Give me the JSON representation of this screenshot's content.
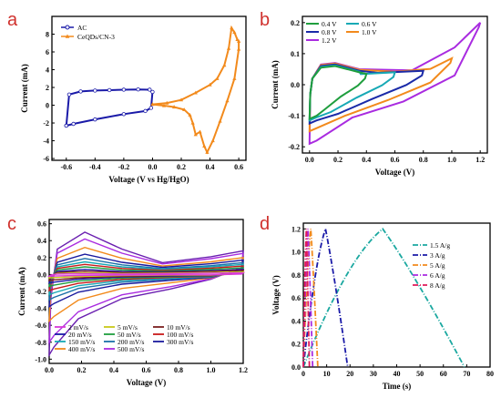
{
  "chart_data": [
    {
      "panel": "a",
      "type": "line",
      "xlabel": "Voltage (V vs Hg/HgO)",
      "ylabel": "Current (mA)",
      "xlim": [
        -0.7,
        0.65
      ],
      "ylim": [
        -6.2,
        10
      ],
      "xticks": [
        -0.6,
        -0.4,
        -0.2,
        0.0,
        0.2,
        0.4,
        0.6
      ],
      "xtick_labels": [
        "-0.6",
        "-0.4",
        "-0.2",
        "0.0",
        "0.2",
        "0.4",
        "0.6"
      ],
      "yticks": [
        -6,
        -4,
        -2,
        0,
        2,
        4,
        6,
        8
      ],
      "legend_position": "top-left",
      "series": [
        {
          "name": "AC",
          "color": "#1a1aa8",
          "marker": "circle",
          "closed": true,
          "x": [
            -0.6,
            -0.58,
            -0.5,
            -0.4,
            -0.3,
            -0.2,
            -0.1,
            -0.02,
            0.0,
            -0.01,
            -0.05,
            -0.2,
            -0.4,
            -0.55,
            -0.6
          ],
          "y": [
            -2.3,
            1.2,
            1.55,
            1.65,
            1.7,
            1.75,
            1.78,
            1.75,
            1.5,
            -0.3,
            -0.65,
            -1.0,
            -1.6,
            -2.1,
            -2.3
          ]
        },
        {
          "name": "CeQDs/CN-3",
          "color": "#f28a1c",
          "marker": "triangle",
          "closed": true,
          "x": [
            0.0,
            0.1,
            0.2,
            0.3,
            0.4,
            0.45,
            0.5,
            0.53,
            0.55,
            0.57,
            0.59,
            0.6,
            0.6,
            0.57,
            0.52,
            0.47,
            0.42,
            0.38,
            0.36,
            0.33,
            0.3,
            0.28,
            0.26,
            0.22,
            0.15,
            0.08,
            0.0
          ],
          "y": [
            0.1,
            0.25,
            0.6,
            1.4,
            2.3,
            3.0,
            4.5,
            6.4,
            8.7,
            8.2,
            7.4,
            7.2,
            6.3,
            3.0,
            0.5,
            -1.8,
            -4.0,
            -5.3,
            -4.6,
            -3.0,
            -3.3,
            -2.0,
            -1.1,
            -0.5,
            -0.2,
            -0.05,
            0.1
          ]
        }
      ]
    },
    {
      "panel": "b",
      "type": "line",
      "xlabel": "Voltage (V)",
      "ylabel": "Current (mA)",
      "xlim": [
        -0.05,
        1.25
      ],
      "ylim": [
        -0.22,
        0.22
      ],
      "xticks": [
        0.0,
        0.2,
        0.4,
        0.6,
        0.8,
        1.0,
        1.2
      ],
      "xtick_labels": [
        "0.0",
        "0.2",
        "0.4",
        "0.6",
        "0.8",
        "1.0",
        "1.2"
      ],
      "yticks": [
        -0.2,
        -0.1,
        0.0,
        0.1,
        0.2
      ],
      "ytick_labels": [
        "-0.2",
        "-0.1",
        "0.0",
        "0.1",
        "0.2"
      ],
      "legend_position": "top-left",
      "series": [
        {
          "name": "0.4 V",
          "color": "#1f9e3e",
          "vmax": 0.4,
          "top": 0.035,
          "peak": 0.06,
          "bot": -0.11
        },
        {
          "name": "0.8 V",
          "color": "#1a2aa8",
          "vmax": 0.8,
          "top": 0.045,
          "peak": 0.065,
          "bot": -0.125
        },
        {
          "name": "1.2 V",
          "color": "#a92be0",
          "vmax": 1.2,
          "top": 0.2,
          "peak": 0.07,
          "bot": -0.19
        },
        {
          "name": "0.6 V",
          "color": "#17a9b5",
          "vmax": 0.6,
          "top": 0.04,
          "peak": 0.062,
          "bot": -0.115
        },
        {
          "name": "1.0 V",
          "color": "#f28a1c",
          "vmax": 1.0,
          "top": 0.085,
          "peak": 0.068,
          "bot": -0.15
        }
      ]
    },
    {
      "panel": "c",
      "type": "line",
      "xlabel": "Voltage (V)",
      "ylabel": "Current (mA)",
      "xlim": [
        0.0,
        1.2
      ],
      "ylim": [
        -1.05,
        0.65
      ],
      "xticks": [
        0.0,
        0.2,
        0.4,
        0.6,
        0.8,
        1.0,
        1.2
      ],
      "xtick_labels": [
        "0.0",
        "0.2",
        "0.4",
        "0.6",
        "0.8",
        "1.0",
        "1.2"
      ],
      "yticks": [
        -1.0,
        -0.8,
        -0.6,
        -0.4,
        -0.2,
        0.0,
        0.2,
        0.4,
        0.6
      ],
      "ytick_labels": [
        "-1.0",
        "-0.8",
        "-0.6",
        "-0.4",
        "-0.2",
        "0.0",
        "0.2",
        "0.4",
        "0.6"
      ],
      "legend_position": "bottom-left",
      "series": [
        {
          "name": "2 mV/s",
          "color": "#d93ad9",
          "peak": 0.01,
          "bot": -0.02,
          "end": 0.02
        },
        {
          "name": "5 mV/s",
          "color": "#c8c81a",
          "peak": 0.02,
          "bot": -0.04,
          "end": 0.03
        },
        {
          "name": "10 mV/s",
          "color": "#7a1f1f",
          "peak": 0.04,
          "bot": -0.07,
          "end": 0.05
        },
        {
          "name": "20 mV/s",
          "color": "#1a1aa8",
          "peak": 0.06,
          "bot": -0.1,
          "end": 0.06
        },
        {
          "name": "50 mV/s",
          "color": "#1f9e3e",
          "peak": 0.09,
          "bot": -0.14,
          "end": 0.08
        },
        {
          "name": "100 mV/s",
          "color": "#c81a1a",
          "peak": 0.12,
          "bot": -0.19,
          "end": 0.1
        },
        {
          "name": "150 mV/s",
          "color": "#17a9b5",
          "peak": 0.15,
          "bot": -0.24,
          "end": 0.12
        },
        {
          "name": "200 mV/s",
          "color": "#1a6fa8",
          "peak": 0.19,
          "bot": -0.3,
          "end": 0.14
        },
        {
          "name": "300 mV/s",
          "color": "#1a1a9e",
          "peak": 0.24,
          "bot": -0.38,
          "end": 0.17
        },
        {
          "name": "400 mV/s",
          "color": "#f28a1c",
          "peak": 0.32,
          "bot": -0.55,
          "end": 0.2
        },
        {
          "name": "500 mV/s",
          "color": "#a92be0",
          "peak": 0.42,
          "bot": -0.8,
          "end": 0.25
        },
        {
          "name": "",
          "color": "#6a1fb0",
          "peak": 0.5,
          "bot": -0.95,
          "end": 0.28
        }
      ]
    },
    {
      "panel": "d",
      "type": "line",
      "xlabel": "Time (s)",
      "ylabel": "Voltage (V)",
      "xlim": [
        0,
        80
      ],
      "ylim": [
        0.0,
        1.25
      ],
      "xticks": [
        0,
        10,
        20,
        30,
        40,
        50,
        60,
        70,
        80
      ],
      "xtick_labels": [
        "0",
        "10",
        "20",
        "30",
        "40",
        "50",
        "60",
        "70",
        "80"
      ],
      "yticks": [
        0.0,
        0.2,
        0.4,
        0.6,
        0.8,
        1.0,
        1.2
      ],
      "ytick_labels": [
        "0.0",
        "0.2",
        "0.4",
        "0.6",
        "0.8",
        "1.0",
        "1.2"
      ],
      "legend_position": "top-right",
      "series": [
        {
          "name": "1.5 A/g",
          "color": "#1aa8a0",
          "dash": "6,2,1,2",
          "x": [
            0,
            34,
            69
          ],
          "y": [
            0.0,
            1.2,
            0.0
          ]
        },
        {
          "name": "3 A/g",
          "color": "#1a1aa8",
          "dash": "6,2,1,2",
          "x": [
            0,
            9.5,
            19
          ],
          "y": [
            0.0,
            1.2,
            0.0
          ]
        },
        {
          "name": "5 A/g",
          "color": "#f28a1c",
          "dash": "6,2,1,2",
          "x": [
            0,
            3.2,
            6.2
          ],
          "y": [
            0.0,
            1.2,
            0.0
          ]
        },
        {
          "name": "6 A/g",
          "color": "#a92be0",
          "dash": "6,2,1,2",
          "x": [
            0,
            2.0,
            4.0
          ],
          "y": [
            0.0,
            1.2,
            0.0
          ]
        },
        {
          "name": "8 A/g",
          "color": "#e01a5a",
          "dash": "6,2,1,2",
          "x": [
            0,
            1.3,
            2.6
          ],
          "y": [
            0.0,
            1.2,
            0.0
          ]
        }
      ]
    }
  ]
}
